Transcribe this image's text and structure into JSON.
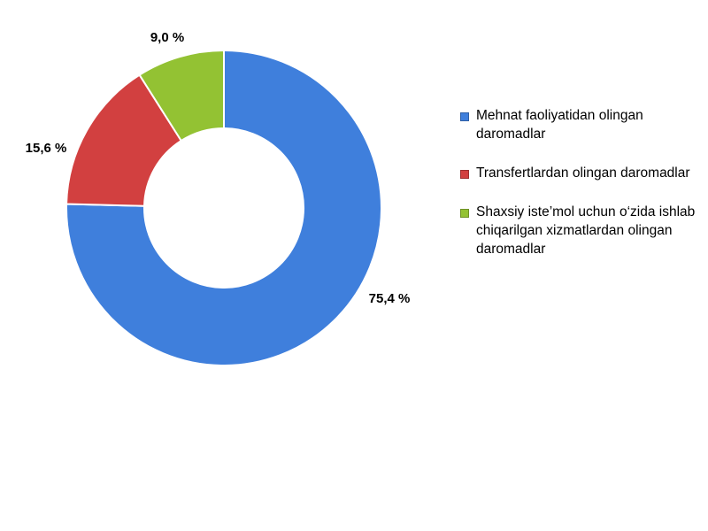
{
  "chart_data": {
    "type": "pie",
    "donut": true,
    "title": "",
    "legend_position": "right",
    "series": [
      {
        "name": "Mehnat faoliyatidan olingan daromadlar",
        "value": 75.4,
        "label": "75,4 %",
        "color": "#3f7fdc"
      },
      {
        "name": "Transfertlardan olingan daromadlar",
        "value": 15.6,
        "label": "15,6 %",
        "color": "#d24040"
      },
      {
        "name": "Shaxsiy iste’mol uchun o‘zida ishlab chiqarilgan xizmatlardan olingan daromadlar",
        "value": 9.0,
        "label": "9,0 %",
        "color": "#93c233"
      }
    ]
  }
}
